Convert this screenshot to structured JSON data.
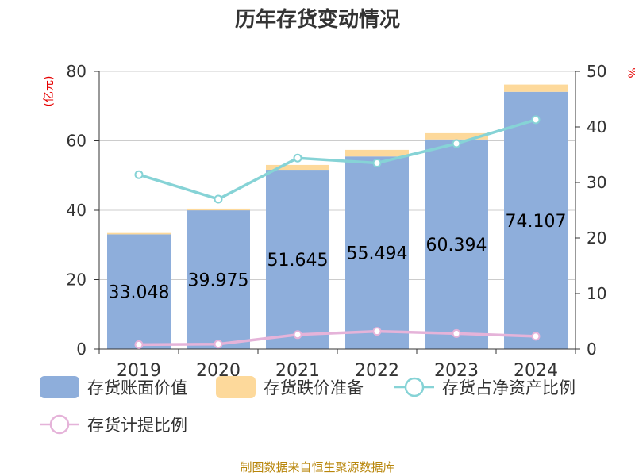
{
  "chart_data": {
    "type": "bar",
    "title": "历年存货变动情况",
    "categories": [
      "2019",
      "2020",
      "2021",
      "2022",
      "2023",
      "2024"
    ],
    "left_axis": {
      "unit": "(亿元)",
      "ylim": [
        0,
        80
      ],
      "ticks": [
        0,
        20,
        40,
        60,
        80
      ]
    },
    "right_axis": {
      "unit": "%",
      "ylim": [
        0,
        50
      ],
      "ticks": [
        0,
        10,
        20,
        30,
        40,
        50
      ]
    },
    "series": [
      {
        "name": "存货账面价值",
        "type": "bar",
        "axis": "left",
        "stack": "inv",
        "color": "#8eaedb",
        "values": [
          33.048,
          39.975,
          51.645,
          55.494,
          60.394,
          74.107
        ]
      },
      {
        "name": "存货跌价准备",
        "type": "bar",
        "axis": "left",
        "stack": "inv",
        "color": "#fdd99b",
        "values": [
          0.4,
          0.5,
          1.4,
          1.9,
          1.8,
          2.1
        ]
      },
      {
        "name": "存货占净资产比例",
        "type": "line",
        "axis": "right",
        "color": "#86d3d6",
        "values": [
          31.4,
          27.0,
          34.4,
          33.5,
          37.0,
          41.3
        ]
      },
      {
        "name": "存货计提比例",
        "type": "line",
        "axis": "right",
        "color": "#e5b3d9",
        "values": [
          0.8,
          0.9,
          2.6,
          3.2,
          2.8,
          2.3
        ]
      }
    ],
    "grid": true,
    "legend_position": "bottom"
  },
  "source": "制图数据来自恒生聚源数据库"
}
